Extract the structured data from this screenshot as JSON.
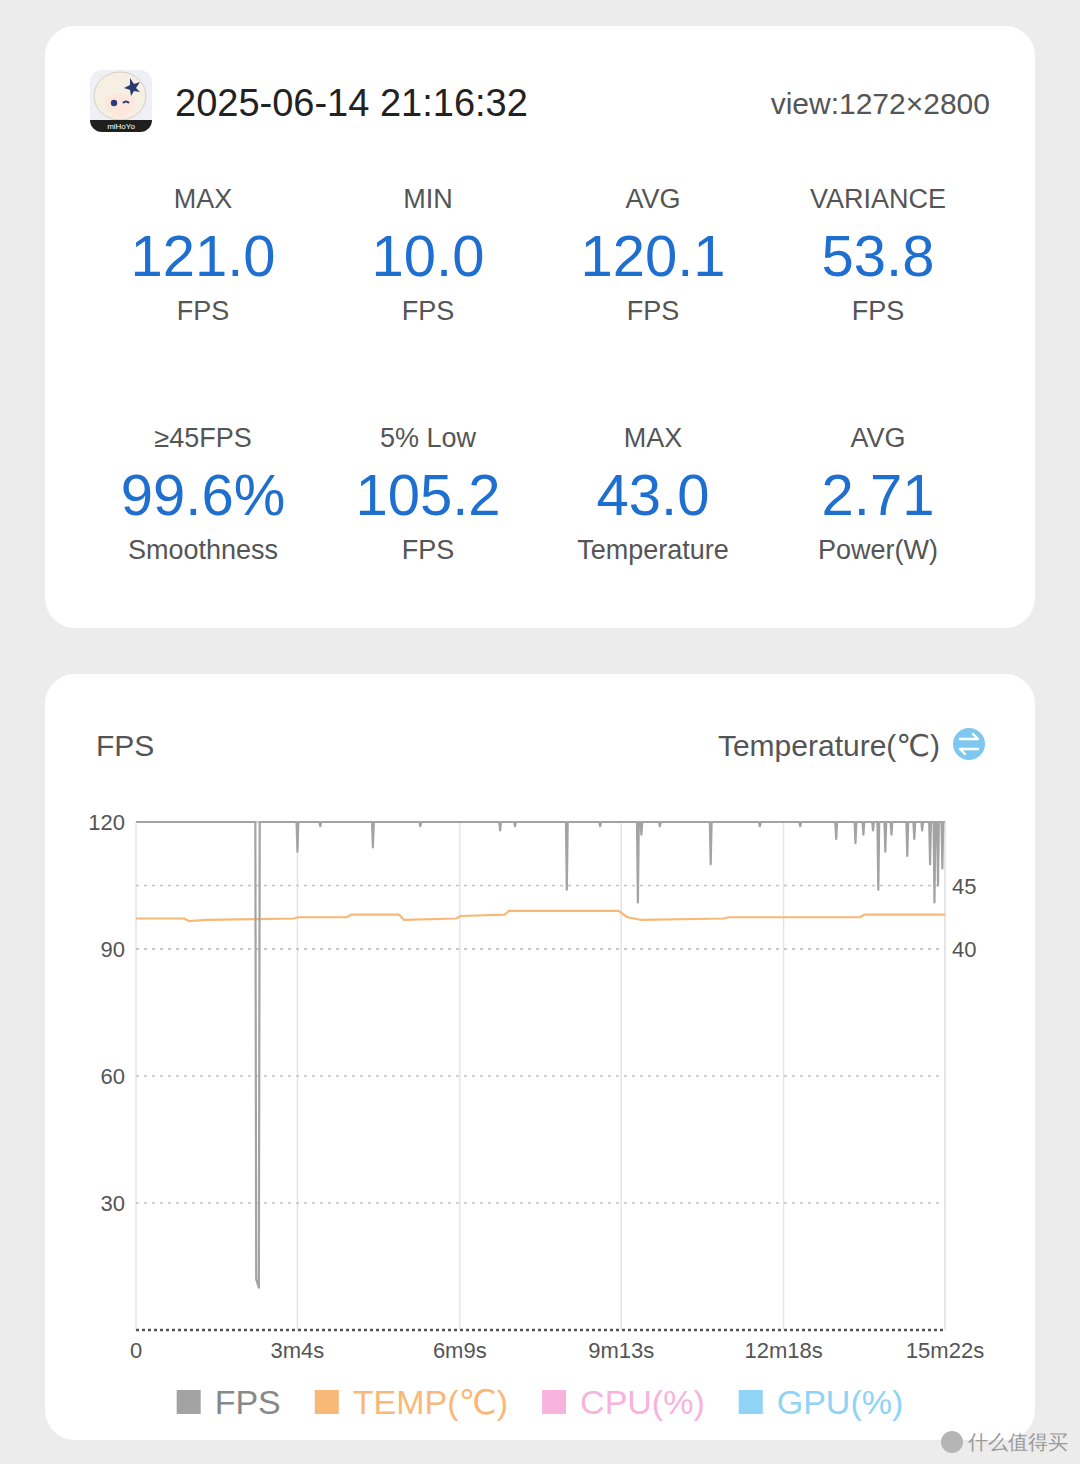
{
  "header": {
    "icon_text": "miHoYo",
    "date": "2025-06-14 21:16:32",
    "view": "view:1272×2800"
  },
  "stats": [
    {
      "label": "MAX",
      "value": "121.0",
      "unit": "FPS"
    },
    {
      "label": "MIN",
      "value": "10.0",
      "unit": "FPS"
    },
    {
      "label": "AVG",
      "value": "120.1",
      "unit": "FPS"
    },
    {
      "label": "VARIANCE",
      "value": "53.8",
      "unit": "FPS"
    },
    {
      "label": "≥45FPS",
      "value": "99.6%",
      "unit": "Smoothness"
    },
    {
      "label": "5% Low",
      "value": "105.2",
      "unit": "FPS"
    },
    {
      "label": "MAX",
      "value": "43.0",
      "unit": "Temperature"
    },
    {
      "label": "AVG",
      "value": "2.71",
      "unit": "Power(W)"
    }
  ],
  "chart_data": {
    "type": "line",
    "y_label": "FPS",
    "y2_label": "Temperature(℃)",
    "xlim": [
      0,
      922
    ],
    "xticks": [
      0,
      {
        "value": 184,
        "label": "3m4s"
      },
      {
        "value": 369,
        "label": "6m9s"
      },
      {
        "value": 553,
        "label": "9m13s"
      },
      {
        "value": 738,
        "label": "12m18s"
      },
      {
        "value": 922,
        "label": "15m22s"
      }
    ],
    "ylim": [
      0,
      120
    ],
    "yticks": [
      30,
      60,
      90,
      120
    ],
    "y2lim": [
      10,
      50
    ],
    "y2ticks": [
      40,
      45
    ],
    "grid": true,
    "legend": "bottom",
    "series": [
      {
        "name": "FPS",
        "color": "#a3a3a3",
        "x": [
          0,
          136,
          137,
          140,
          141,
          183,
          184,
          185,
          209,
          210,
          211,
          269,
          270,
          271,
          323,
          324,
          325,
          414,
          415,
          416,
          431,
          432,
          433,
          490,
          491,
          492,
          528,
          529,
          530,
          571,
          572,
          573,
          575,
          576,
          577,
          596,
          597,
          598,
          654,
          655,
          656,
          710,
          711,
          712,
          756,
          757,
          758,
          797,
          798,
          799,
          819,
          820,
          821,
          828,
          829,
          830,
          839,
          840,
          841,
          845,
          846,
          847,
          853,
          854,
          855,
          860,
          861,
          862,
          878,
          879,
          880,
          886,
          887,
          888,
          895,
          896,
          897,
          904,
          905,
          906,
          909,
          910,
          911,
          913,
          914,
          915,
          918,
          919,
          920,
          922
        ],
        "values": [
          120,
          120,
          12,
          10,
          120,
          120,
          113,
          120,
          120,
          119,
          120,
          120,
          114,
          120,
          120,
          119,
          120,
          120,
          118,
          120,
          120,
          119,
          120,
          120,
          104,
          120,
          120,
          119,
          120,
          120,
          101,
          120,
          120,
          117,
          120,
          120,
          119,
          120,
          120,
          110,
          120,
          120,
          119,
          120,
          120,
          119,
          120,
          120,
          116,
          120,
          120,
          115,
          120,
          120,
          117,
          120,
          120,
          118,
          120,
          120,
          104,
          120,
          120,
          113,
          120,
          120,
          117,
          120,
          120,
          112,
          120,
          120,
          116,
          120,
          120,
          118,
          120,
          120,
          110,
          120,
          120,
          101,
          120,
          120,
          105,
          120,
          120,
          109,
          120,
          120
        ]
      },
      {
        "name": "TEMP(℃)",
        "color": "#f8b878",
        "axis": "y2",
        "x": [
          0,
          55,
          60,
          80,
          180,
          185,
          240,
          245,
          300,
          305,
          365,
          370,
          420,
          425,
          550,
          560,
          575,
          670,
          675,
          825,
          830,
          922
        ],
        "values": [
          42.4,
          42.4,
          42.2,
          42.3,
          42.4,
          42.5,
          42.5,
          42.7,
          42.7,
          42.3,
          42.4,
          42.6,
          42.7,
          43.0,
          43.0,
          42.5,
          42.3,
          42.4,
          42.5,
          42.5,
          42.7,
          42.7
        ]
      },
      {
        "name": "CPU(%)",
        "color": "#f7b3dc",
        "values": []
      },
      {
        "name": "GPU(%)",
        "color": "#8fd3f5",
        "values": []
      }
    ]
  },
  "watermark": "什么值得买"
}
